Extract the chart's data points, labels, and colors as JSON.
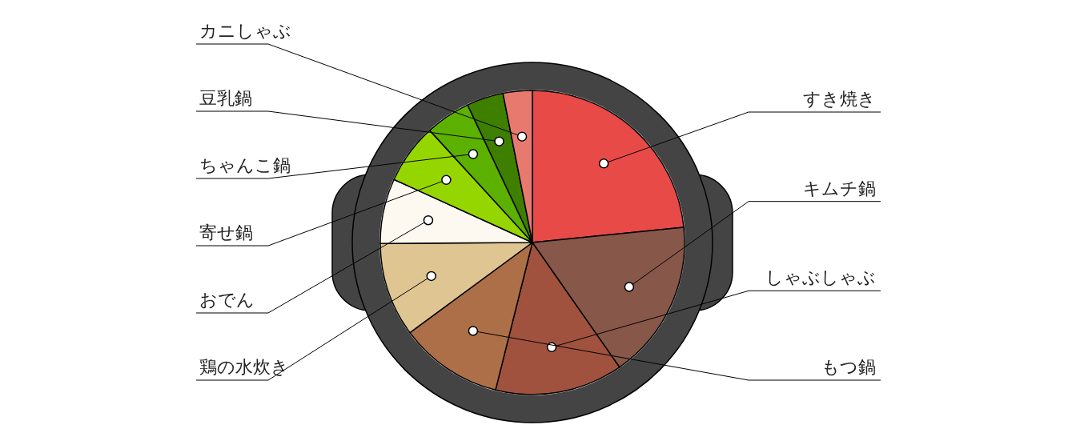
{
  "chart_data": {
    "type": "pie",
    "categories": [
      "すき焼き",
      "キムチ鍋",
      "しゃぶしゃぶ",
      "もつ鍋",
      "鶏の水炊き",
      "おでん",
      "寄せ鍋",
      "ちゃんこ鍋",
      "豆乳鍋",
      "カニしゃぶ"
    ],
    "values": [
      23.4,
      16.9,
      13.6,
      11.0,
      10.0,
      6.9,
      6.4,
      4.8,
      3.9,
      3.1
    ],
    "colors": [
      "#e84a48",
      "#87574a",
      "#a0523f",
      "#ad6f48",
      "#dfc592",
      "#fdf8f0",
      "#96d600",
      "#5cb000",
      "#3f7f00",
      "#e8796f"
    ]
  }
}
